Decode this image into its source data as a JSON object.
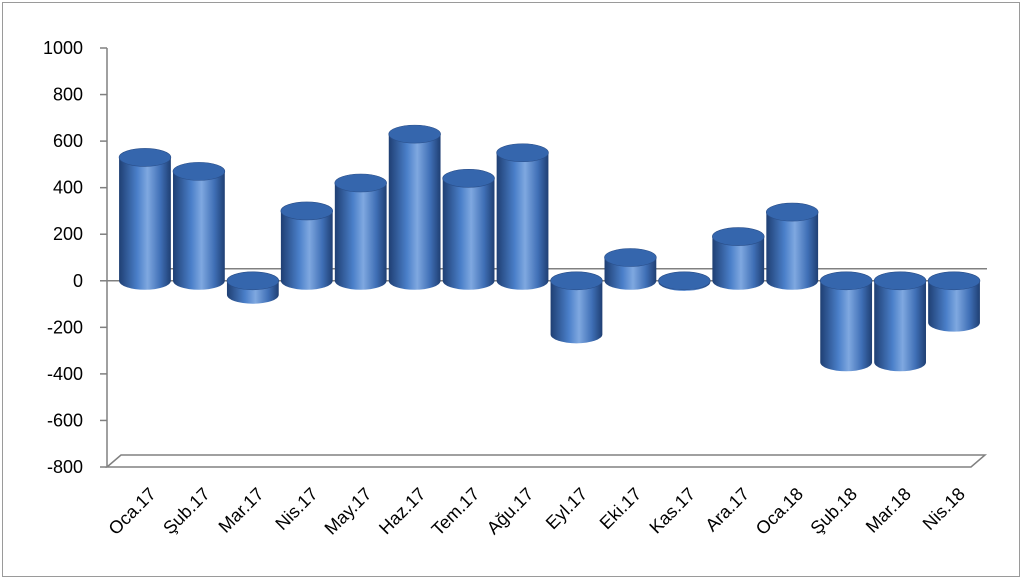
{
  "chart_data": {
    "type": "bar",
    "style": "3d-cylinder",
    "categories": [
      "Oca.17",
      "Şub.17",
      "Mar.17",
      "Nis.17",
      "May.17",
      "Haz.17",
      "Tem.17",
      "Ağu.17",
      "Eyl.17",
      "Eki.17",
      "Kas.17",
      "Ara.17",
      "Oca.18",
      "Şub.18",
      "Mar.18",
      "Nis.18"
    ],
    "values": [
      530,
      470,
      -60,
      300,
      420,
      630,
      440,
      550,
      -230,
      100,
      -5,
      190,
      295,
      -350,
      -350,
      -180
    ],
    "ylim": [
      -800,
      1000
    ],
    "yticks": [
      "1000",
      "800",
      "600",
      "400",
      "200",
      "0",
      "-200",
      "-400",
      "-600",
      "-800"
    ],
    "ytick_values": [
      1000,
      800,
      600,
      400,
      200,
      0,
      -200,
      -400,
      -600,
      -800
    ],
    "title": "",
    "xlabel": "",
    "ylabel": "",
    "grid": false,
    "legend": "none",
    "colors": {
      "bar_dark": "#1f3f73",
      "bar_mid": "#4a7fc9",
      "bar_light": "#7fa8e0",
      "bar_top": "#3b6bb3",
      "axis": "#808080",
      "floor": "#ffffff"
    }
  }
}
